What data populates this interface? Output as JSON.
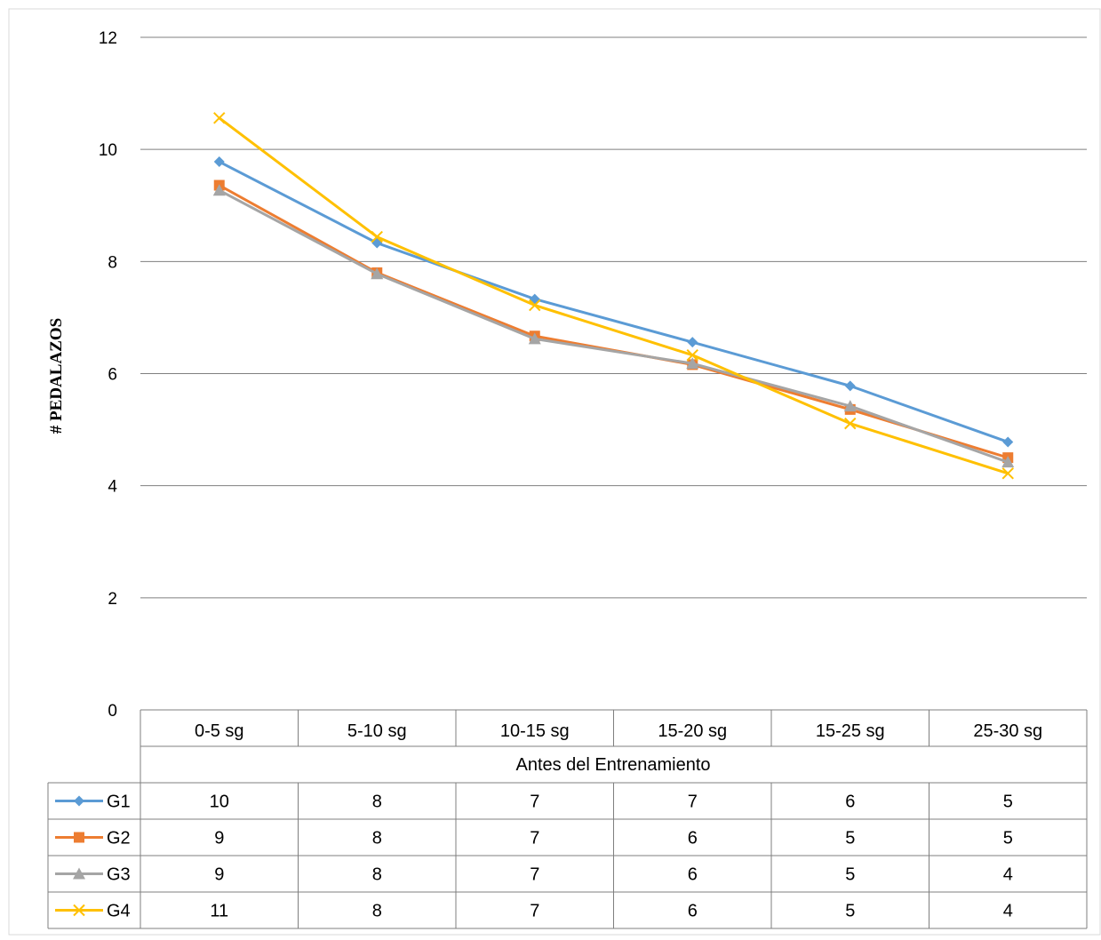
{
  "chart_data": {
    "type": "line",
    "title": "",
    "xlabel": "Antes del Entrenamiento",
    "ylabel": "# PEDALAZOS",
    "ylim": [
      0,
      12
    ],
    "yticks": [
      "0",
      "2",
      "4",
      "6",
      "8",
      "10",
      "12"
    ],
    "grid": true,
    "legend": "data-table",
    "categories": [
      "0-5 sg",
      "5-10 sg",
      "10-15 sg",
      "15-20 sg",
      "15-25 sg",
      "25-30 sg"
    ],
    "series": [
      {
        "name": "G1",
        "color": "#5B9BD5",
        "marker": "diamond",
        "values": [
          9.78,
          8.33,
          7.33,
          6.56,
          5.78,
          4.78
        ],
        "table_values": [
          "10",
          "8",
          "7",
          "7",
          "6",
          "5"
        ]
      },
      {
        "name": "G2",
        "color": "#ED7D31",
        "marker": "square",
        "values": [
          9.36,
          7.8,
          6.67,
          6.16,
          5.36,
          4.5
        ],
        "table_values": [
          "9",
          "8",
          "7",
          "6",
          "5",
          "5"
        ]
      },
      {
        "name": "G3",
        "color": "#A5A5A5",
        "marker": "triangle",
        "values": [
          9.27,
          7.78,
          6.62,
          6.18,
          5.42,
          4.42
        ],
        "table_values": [
          "9",
          "8",
          "7",
          "6",
          "5",
          "4"
        ]
      },
      {
        "name": "G4",
        "color": "#FFC000",
        "marker": "x",
        "values": [
          10.56,
          8.44,
          7.22,
          6.33,
          5.11,
          4.22
        ],
        "table_values": [
          "11",
          "8",
          "7",
          "6",
          "5",
          "4"
        ]
      }
    ]
  }
}
